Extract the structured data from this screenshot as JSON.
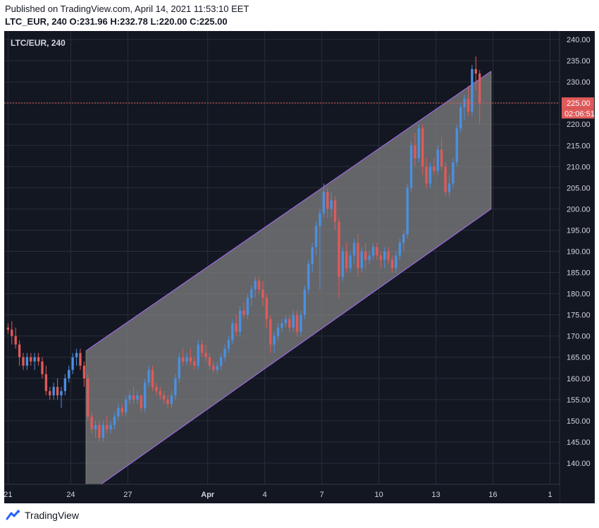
{
  "header": {
    "published": "Published on TradingView.com, April 14, 2021 11:53:10 EET",
    "symbol": "LTC_EUR, 240",
    "ohlc": [
      {
        "key": "O:",
        "value": "231.96"
      },
      {
        "key": "H:",
        "value": "232.78"
      },
      {
        "key": "L:",
        "value": "220.00"
      },
      {
        "key": "C:",
        "value": "225.00"
      }
    ]
  },
  "colors": {
    "background": "#131722",
    "up": "#4a90e2",
    "down": "#e05a5a",
    "channel_fill": "#808080",
    "channel_border": "#9c6ade",
    "grid": "#2a2e39",
    "axis_text": "#d1d4dc",
    "price_line": "#e05a5a",
    "label_bg": "#e05a5a"
  },
  "footer": {
    "brand": "TradingView"
  },
  "chart_data": {
    "type": "candlestick",
    "title": "LTC/EUR, 240",
    "ylim": [
      135,
      242
    ],
    "y_ticks": [
      140,
      145,
      150,
      155,
      160,
      165,
      170,
      175,
      180,
      185,
      190,
      195,
      200,
      205,
      210,
      215,
      220,
      225,
      230,
      235,
      240
    ],
    "x_ticks": [
      {
        "label": "21",
        "index": 0
      },
      {
        "label": "24",
        "index": 16.5
      },
      {
        "label": "27",
        "index": 31.5
      },
      {
        "label": "Apr",
        "index": 52.5
      },
      {
        "label": "4",
        "index": 67.5
      },
      {
        "label": "7",
        "index": 82.5
      },
      {
        "label": "10",
        "index": 97.5
      },
      {
        "label": "13",
        "index": 112.5
      },
      {
        "label": "16",
        "index": 127.5
      },
      {
        "label": "1",
        "index": 142.5
      }
    ],
    "x_index_range": [
      -1,
      145
    ],
    "current_price": {
      "value": 225.0,
      "label": "225.00",
      "countdown": "02:06:51"
    },
    "channel": {
      "start_index": 20.5,
      "end_index": 127,
      "upper": [
        166.5,
        232.5
      ],
      "lower": [
        132.5,
        200
      ]
    },
    "ohlc": [
      [
        172,
        173,
        170.5,
        171.5
      ],
      [
        171.5,
        173.5,
        168,
        170
      ],
      [
        170,
        172,
        167,
        168
      ],
      [
        168,
        169,
        163,
        165
      ],
      [
        165,
        166,
        162,
        163
      ],
      [
        163,
        166,
        162,
        165
      ],
      [
        165,
        166,
        163,
        164
      ],
      [
        164,
        166,
        162,
        165
      ],
      [
        165,
        166,
        163,
        164
      ],
      [
        164,
        165,
        160,
        161
      ],
      [
        161,
        163,
        156,
        157
      ],
      [
        157,
        158,
        155,
        156
      ],
      [
        156,
        159,
        155,
        158
      ],
      [
        158,
        160,
        155,
        156
      ],
      [
        156,
        158,
        153,
        157
      ],
      [
        157,
        161,
        156,
        160
      ],
      [
        160,
        163,
        159,
        162
      ],
      [
        162,
        166,
        161,
        165
      ],
      [
        165,
        167,
        163,
        166
      ],
      [
        166,
        167,
        162,
        163
      ],
      [
        163,
        164,
        158,
        160
      ],
      [
        160,
        161,
        150,
        151
      ],
      [
        151,
        152,
        147,
        148
      ],
      [
        148,
        150,
        146,
        149
      ],
      [
        149,
        150,
        145,
        146
      ],
      [
        146,
        150,
        145,
        149
      ],
      [
        149,
        151,
        147,
        148
      ],
      [
        148,
        150,
        147,
        149
      ],
      [
        149,
        152,
        148,
        151
      ],
      [
        151,
        154,
        150,
        153
      ],
      [
        153,
        154,
        151,
        152
      ],
      [
        152,
        156,
        151,
        155
      ],
      [
        155,
        157,
        154,
        156
      ],
      [
        156,
        158,
        154,
        155
      ],
      [
        155,
        157,
        154,
        156
      ],
      [
        156,
        156,
        152,
        153
      ],
      [
        153,
        160,
        152,
        159
      ],
      [
        159,
        163,
        158,
        162
      ],
      [
        162,
        163,
        157,
        158
      ],
      [
        158,
        159,
        156,
        157
      ],
      [
        157,
        158,
        155,
        156
      ],
      [
        156,
        157,
        154,
        155
      ],
      [
        155,
        156,
        153,
        154
      ],
      [
        154,
        157,
        153,
        156
      ],
      [
        156,
        161,
        155,
        160
      ],
      [
        160,
        166,
        159,
        165
      ],
      [
        165,
        167,
        163,
        164
      ],
      [
        164,
        166,
        163,
        165
      ],
      [
        165,
        167,
        163,
        164
      ],
      [
        164,
        165,
        162,
        163
      ],
      [
        163,
        169,
        162,
        168
      ],
      [
        168,
        169,
        165,
        166
      ],
      [
        166,
        168,
        164,
        165
      ],
      [
        165,
        166,
        162,
        163
      ],
      [
        163,
        164,
        161,
        162
      ],
      [
        162,
        164,
        161,
        163
      ],
      [
        163,
        166,
        162,
        165
      ],
      [
        165,
        168,
        164,
        167
      ],
      [
        167,
        170,
        166,
        169
      ],
      [
        169,
        174,
        168,
        173
      ],
      [
        173,
        175,
        170,
        171
      ],
      [
        171,
        177,
        170,
        176
      ],
      [
        176,
        178,
        174,
        175
      ],
      [
        175,
        180,
        174,
        179
      ],
      [
        179,
        182,
        177,
        181
      ],
      [
        181,
        184,
        179,
        183
      ],
      [
        183,
        184,
        180,
        181
      ],
      [
        181,
        183,
        177,
        179
      ],
      [
        179,
        180,
        172,
        174
      ],
      [
        174,
        175,
        166,
        168
      ],
      [
        168,
        171,
        166,
        170
      ],
      [
        170,
        173,
        169,
        172
      ],
      [
        172,
        174,
        171,
        173
      ],
      [
        173,
        175,
        172,
        174
      ],
      [
        174,
        175,
        171,
        172
      ],
      [
        172,
        176,
        171,
        175
      ],
      [
        175,
        176,
        170,
        171
      ],
      [
        171,
        176,
        170,
        175
      ],
      [
        175,
        182,
        174,
        181
      ],
      [
        181,
        188,
        180,
        187
      ],
      [
        187,
        192,
        185,
        191
      ],
      [
        191,
        197,
        189,
        196
      ],
      [
        196,
        200,
        181,
        199
      ],
      [
        199,
        206,
        198,
        204
      ],
      [
        204,
        205,
        198,
        200
      ],
      [
        200,
        204,
        198,
        202
      ],
      [
        202,
        203,
        195,
        197
      ],
      [
        197,
        198,
        179,
        184
      ],
      [
        184,
        191,
        183,
        190
      ],
      [
        190,
        192,
        185,
        186
      ],
      [
        186,
        190,
        185,
        189
      ],
      [
        189,
        193,
        187,
        192
      ],
      [
        192,
        194,
        184,
        186
      ],
      [
        186,
        191,
        185,
        190
      ],
      [
        190,
        192,
        186,
        188
      ],
      [
        188,
        190,
        187,
        189
      ],
      [
        189,
        192,
        188,
        191
      ],
      [
        191,
        192,
        188,
        189
      ],
      [
        189,
        190,
        186,
        188
      ],
      [
        188,
        191,
        186,
        190
      ],
      [
        190,
        191,
        187,
        188
      ],
      [
        188,
        189,
        185,
        186
      ],
      [
        186,
        190,
        185,
        189
      ],
      [
        189,
        193,
        188,
        192
      ],
      [
        192,
        195,
        190,
        194
      ],
      [
        194,
        206,
        193,
        205
      ],
      [
        205,
        216,
        204,
        215
      ],
      [
        215,
        218,
        210,
        212
      ],
      [
        212,
        220,
        211,
        219
      ],
      [
        219,
        220,
        208,
        210
      ],
      [
        210,
        212,
        205,
        206
      ],
      [
        206,
        211,
        205,
        210
      ],
      [
        210,
        212,
        208,
        209
      ],
      [
        209,
        215,
        208,
        214
      ],
      [
        214,
        217,
        209,
        210
      ],
      [
        210,
        211,
        203,
        204
      ],
      [
        204,
        208,
        203,
        206
      ],
      [
        206,
        212,
        205,
        211
      ],
      [
        211,
        220,
        210,
        219
      ],
      [
        219,
        225,
        218,
        224
      ],
      [
        224,
        227,
        221,
        226
      ],
      [
        226,
        229,
        222,
        223
      ],
      [
        223,
        234,
        222,
        233
      ],
      [
        233,
        236,
        228,
        231.96
      ],
      [
        231.96,
        232.78,
        220,
        225
      ]
    ]
  }
}
